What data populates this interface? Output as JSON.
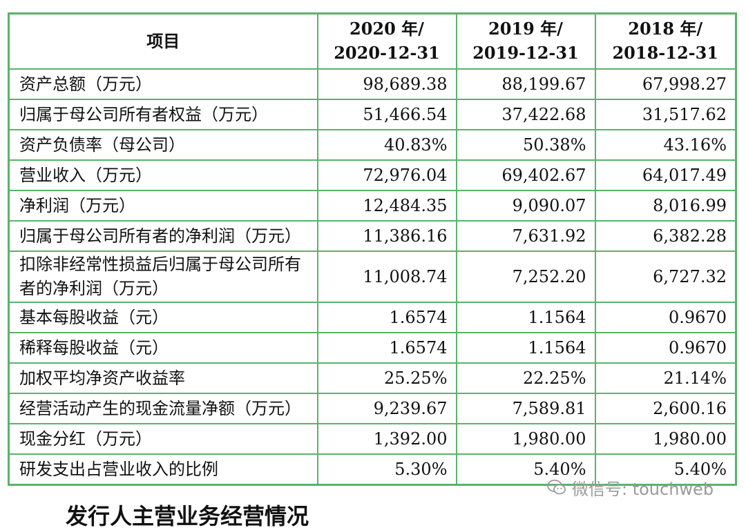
{
  "table": {
    "header": {
      "item": "项目",
      "columns": [
        {
          "line1": "2020 年/",
          "line2": "2020-12-31"
        },
        {
          "line1": "2019 年/",
          "line2": "2019-12-31"
        },
        {
          "line1": "2018 年/",
          "line2": "2018-12-31"
        }
      ]
    },
    "rows": [
      {
        "label": "资产总额（万元）",
        "values": [
          "98,689.38",
          "88,199.67",
          "67,998.27"
        ]
      },
      {
        "label": "归属于母公司所有者权益（万元）",
        "values": [
          "51,466.54",
          "37,422.68",
          "31,517.62"
        ]
      },
      {
        "label": "资产负债率（母公司）",
        "values": [
          "40.83%",
          "50.38%",
          "43.16%"
        ]
      },
      {
        "label": "营业收入（万元）",
        "values": [
          "72,976.04",
          "69,402.67",
          "64,017.49"
        ]
      },
      {
        "label": "净利润（万元）",
        "values": [
          "12,484.35",
          "9,090.07",
          "8,016.99"
        ]
      },
      {
        "label": "归属于母公司所有者的净利润（万元）",
        "values": [
          "11,386.16",
          "7,631.92",
          "6,382.28"
        ]
      },
      {
        "label": "扣除非经常性损益后归属于母公司所有者的净利润（万元）",
        "values": [
          "11,008.74",
          "7,252.20",
          "6,727.32"
        ]
      },
      {
        "label": "基本每股收益（元）",
        "values": [
          "1.6574",
          "1.1564",
          "0.9670"
        ]
      },
      {
        "label": "稀释每股收益（元）",
        "values": [
          "1.6574",
          "1.1564",
          "0.9670"
        ]
      },
      {
        "label": "加权平均净资产收益率",
        "values": [
          "25.25%",
          "22.25%",
          "21.14%"
        ]
      },
      {
        "label": "经营活动产生的现金流量净额（万元）",
        "values": [
          "9,239.67",
          "7,589.81",
          "2,600.16"
        ]
      },
      {
        "label": "现金分红（万元）",
        "values": [
          "1,392.00",
          "1,980.00",
          "1,980.00"
        ]
      },
      {
        "label": "研发支出占营业收入的比例",
        "values": [
          "5.30%",
          "5.40%",
          "5.40%"
        ]
      }
    ]
  },
  "watermark": {
    "text": "微信号: touchweb",
    "icon": "wechat-icon"
  },
  "next_heading": "发行人主营业务经营情况"
}
